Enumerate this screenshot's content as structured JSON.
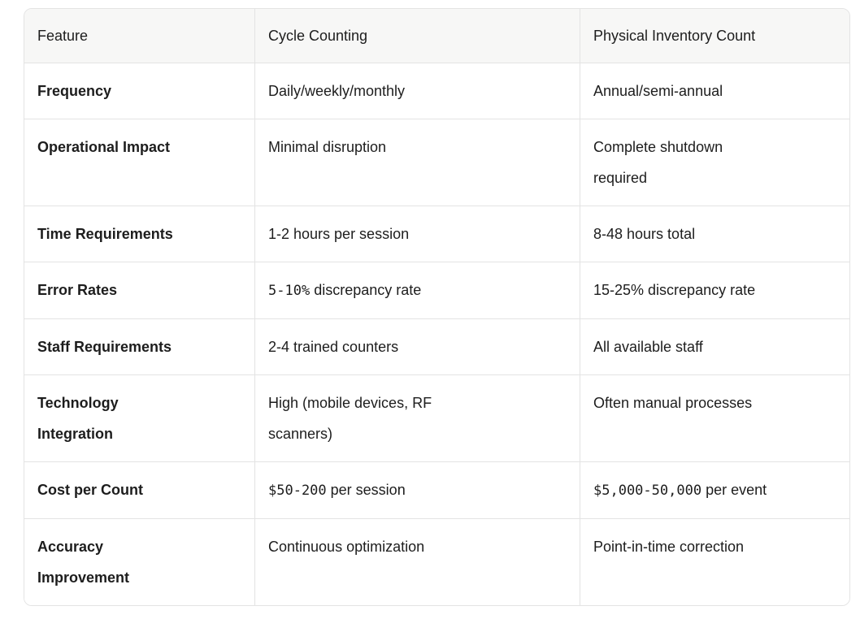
{
  "table": {
    "columns": [
      "Feature",
      "Cycle Counting",
      "Physical Inventory Count"
    ],
    "rows": [
      {
        "feature": "Frequency",
        "cycle": "Daily/weekly/monthly",
        "physical": "Annual/semi-annual"
      },
      {
        "feature": "Operational Impact",
        "cycle": "Minimal disruption",
        "physical": "Complete shutdown\nrequired"
      },
      {
        "feature": "Time Requirements",
        "cycle": "1-2 hours per session",
        "physical": "8-48 hours total"
      },
      {
        "feature": "Error Rates",
        "cycle_code": "5-10%",
        "cycle_text": " discrepancy rate",
        "physical": "15-25% discrepancy rate"
      },
      {
        "feature": "Staff Requirements",
        "cycle": "2-4 trained counters",
        "physical": "All available staff"
      },
      {
        "feature": "Technology\nIntegration",
        "cycle": "High (mobile devices, RF\nscanners)",
        "physical": "Often manual processes"
      },
      {
        "feature": "Cost per Count",
        "cycle_code": "$50-200",
        "cycle_text": " per session",
        "physical_code": "$5,000-50,000",
        "physical_text": " per event"
      },
      {
        "feature": "Accuracy\nImprovement",
        "cycle": "Continuous optimization",
        "physical": "Point-in-time correction"
      }
    ]
  },
  "colors": {
    "header_background": "#f7f7f6",
    "border": "#e3e3e3",
    "text": "#1d1d1d",
    "background": "#ffffff"
  }
}
